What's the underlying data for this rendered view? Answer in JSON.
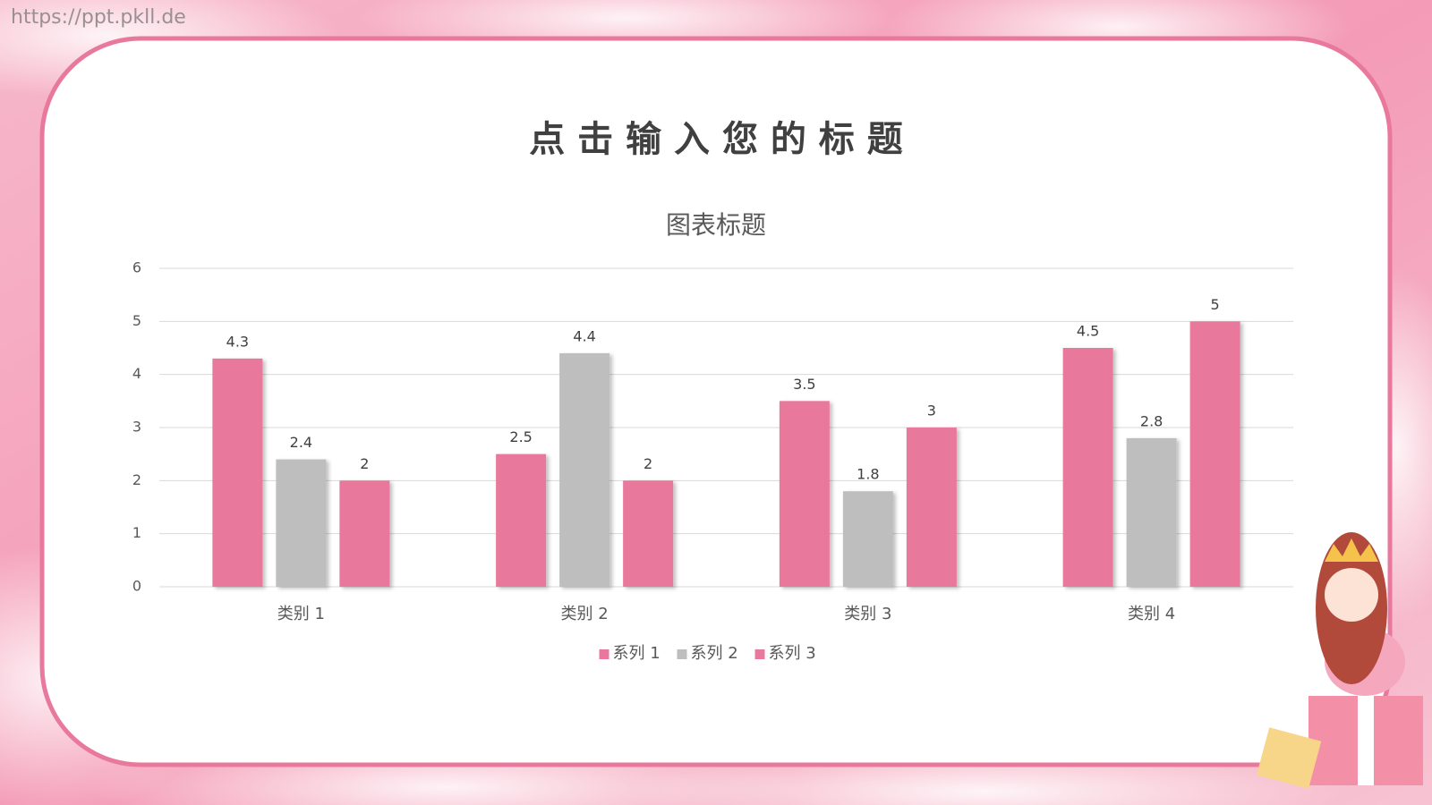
{
  "watermark": "https://ppt.pkll.de",
  "slide_title": "点 击 输 入 您 的 标 题",
  "chart_data": {
    "type": "bar",
    "title": "图表标题",
    "categories": [
      "类别 1",
      "类别 2",
      "类别 3",
      "类别 4"
    ],
    "series": [
      {
        "name": "系列 1",
        "color": "#e8799c",
        "values": [
          4.3,
          2.5,
          3.5,
          4.5
        ]
      },
      {
        "name": "系列 2",
        "color": "#bfbebe",
        "values": [
          2.4,
          4.4,
          1.8,
          2.8
        ]
      },
      {
        "name": "系列 3",
        "color": "#e8799c",
        "values": [
          2,
          2,
          3,
          5
        ]
      }
    ],
    "ylim": [
      0,
      6
    ],
    "yticks": [
      0,
      1,
      2,
      3,
      4,
      5,
      6
    ],
    "grid": true,
    "legend": "bottom"
  }
}
